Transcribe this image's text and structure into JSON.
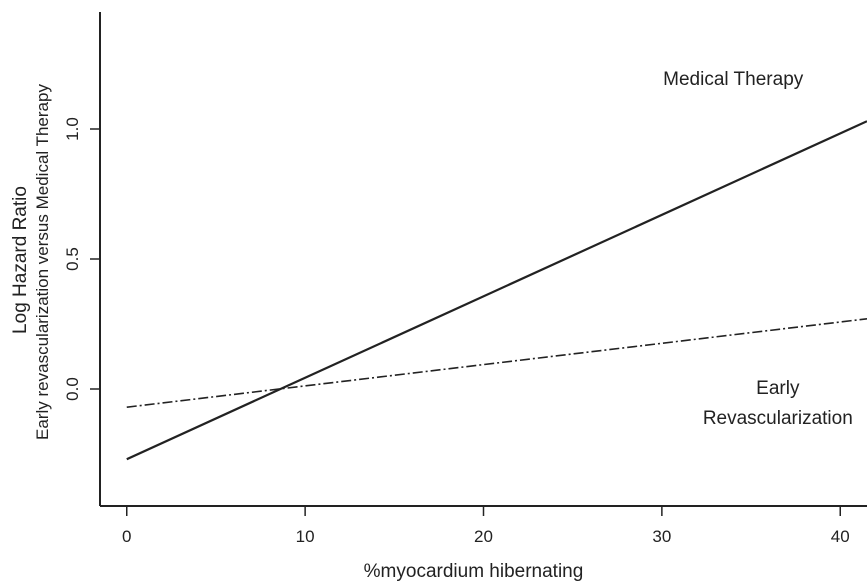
{
  "chart_data": {
    "type": "line",
    "xlabel": "%myocardium hibernating",
    "ylabel": "Log Hazard Ratio",
    "ylabel_sub": "Early revascularization versus Medical Therapy",
    "xlim": [
      -1.5,
      41.5
    ],
    "ylim": [
      -0.45,
      1.45
    ],
    "x_ticks": [
      0,
      10,
      20,
      30,
      40
    ],
    "y_ticks": [
      0.0,
      0.5,
      1.0
    ],
    "y_tick_labels": [
      "0.0",
      "0.5",
      "1.0"
    ],
    "grid": false,
    "series": [
      {
        "style": "solid",
        "color": "#222222",
        "x": [
          0,
          41.5
        ],
        "y": [
          -0.27,
          1.03
        ]
      },
      {
        "style": "dashdot",
        "color": "#222222",
        "x": [
          0,
          41.5
        ],
        "y": [
          -0.07,
          0.27
        ]
      }
    ],
    "annotations": [
      {
        "lines": [
          "Medical Therapy"
        ],
        "x": 34,
        "y": 1.17
      },
      {
        "lines": [
          "Early",
          "Revascularization"
        ],
        "x": 36.5,
        "y": -0.02
      }
    ]
  }
}
